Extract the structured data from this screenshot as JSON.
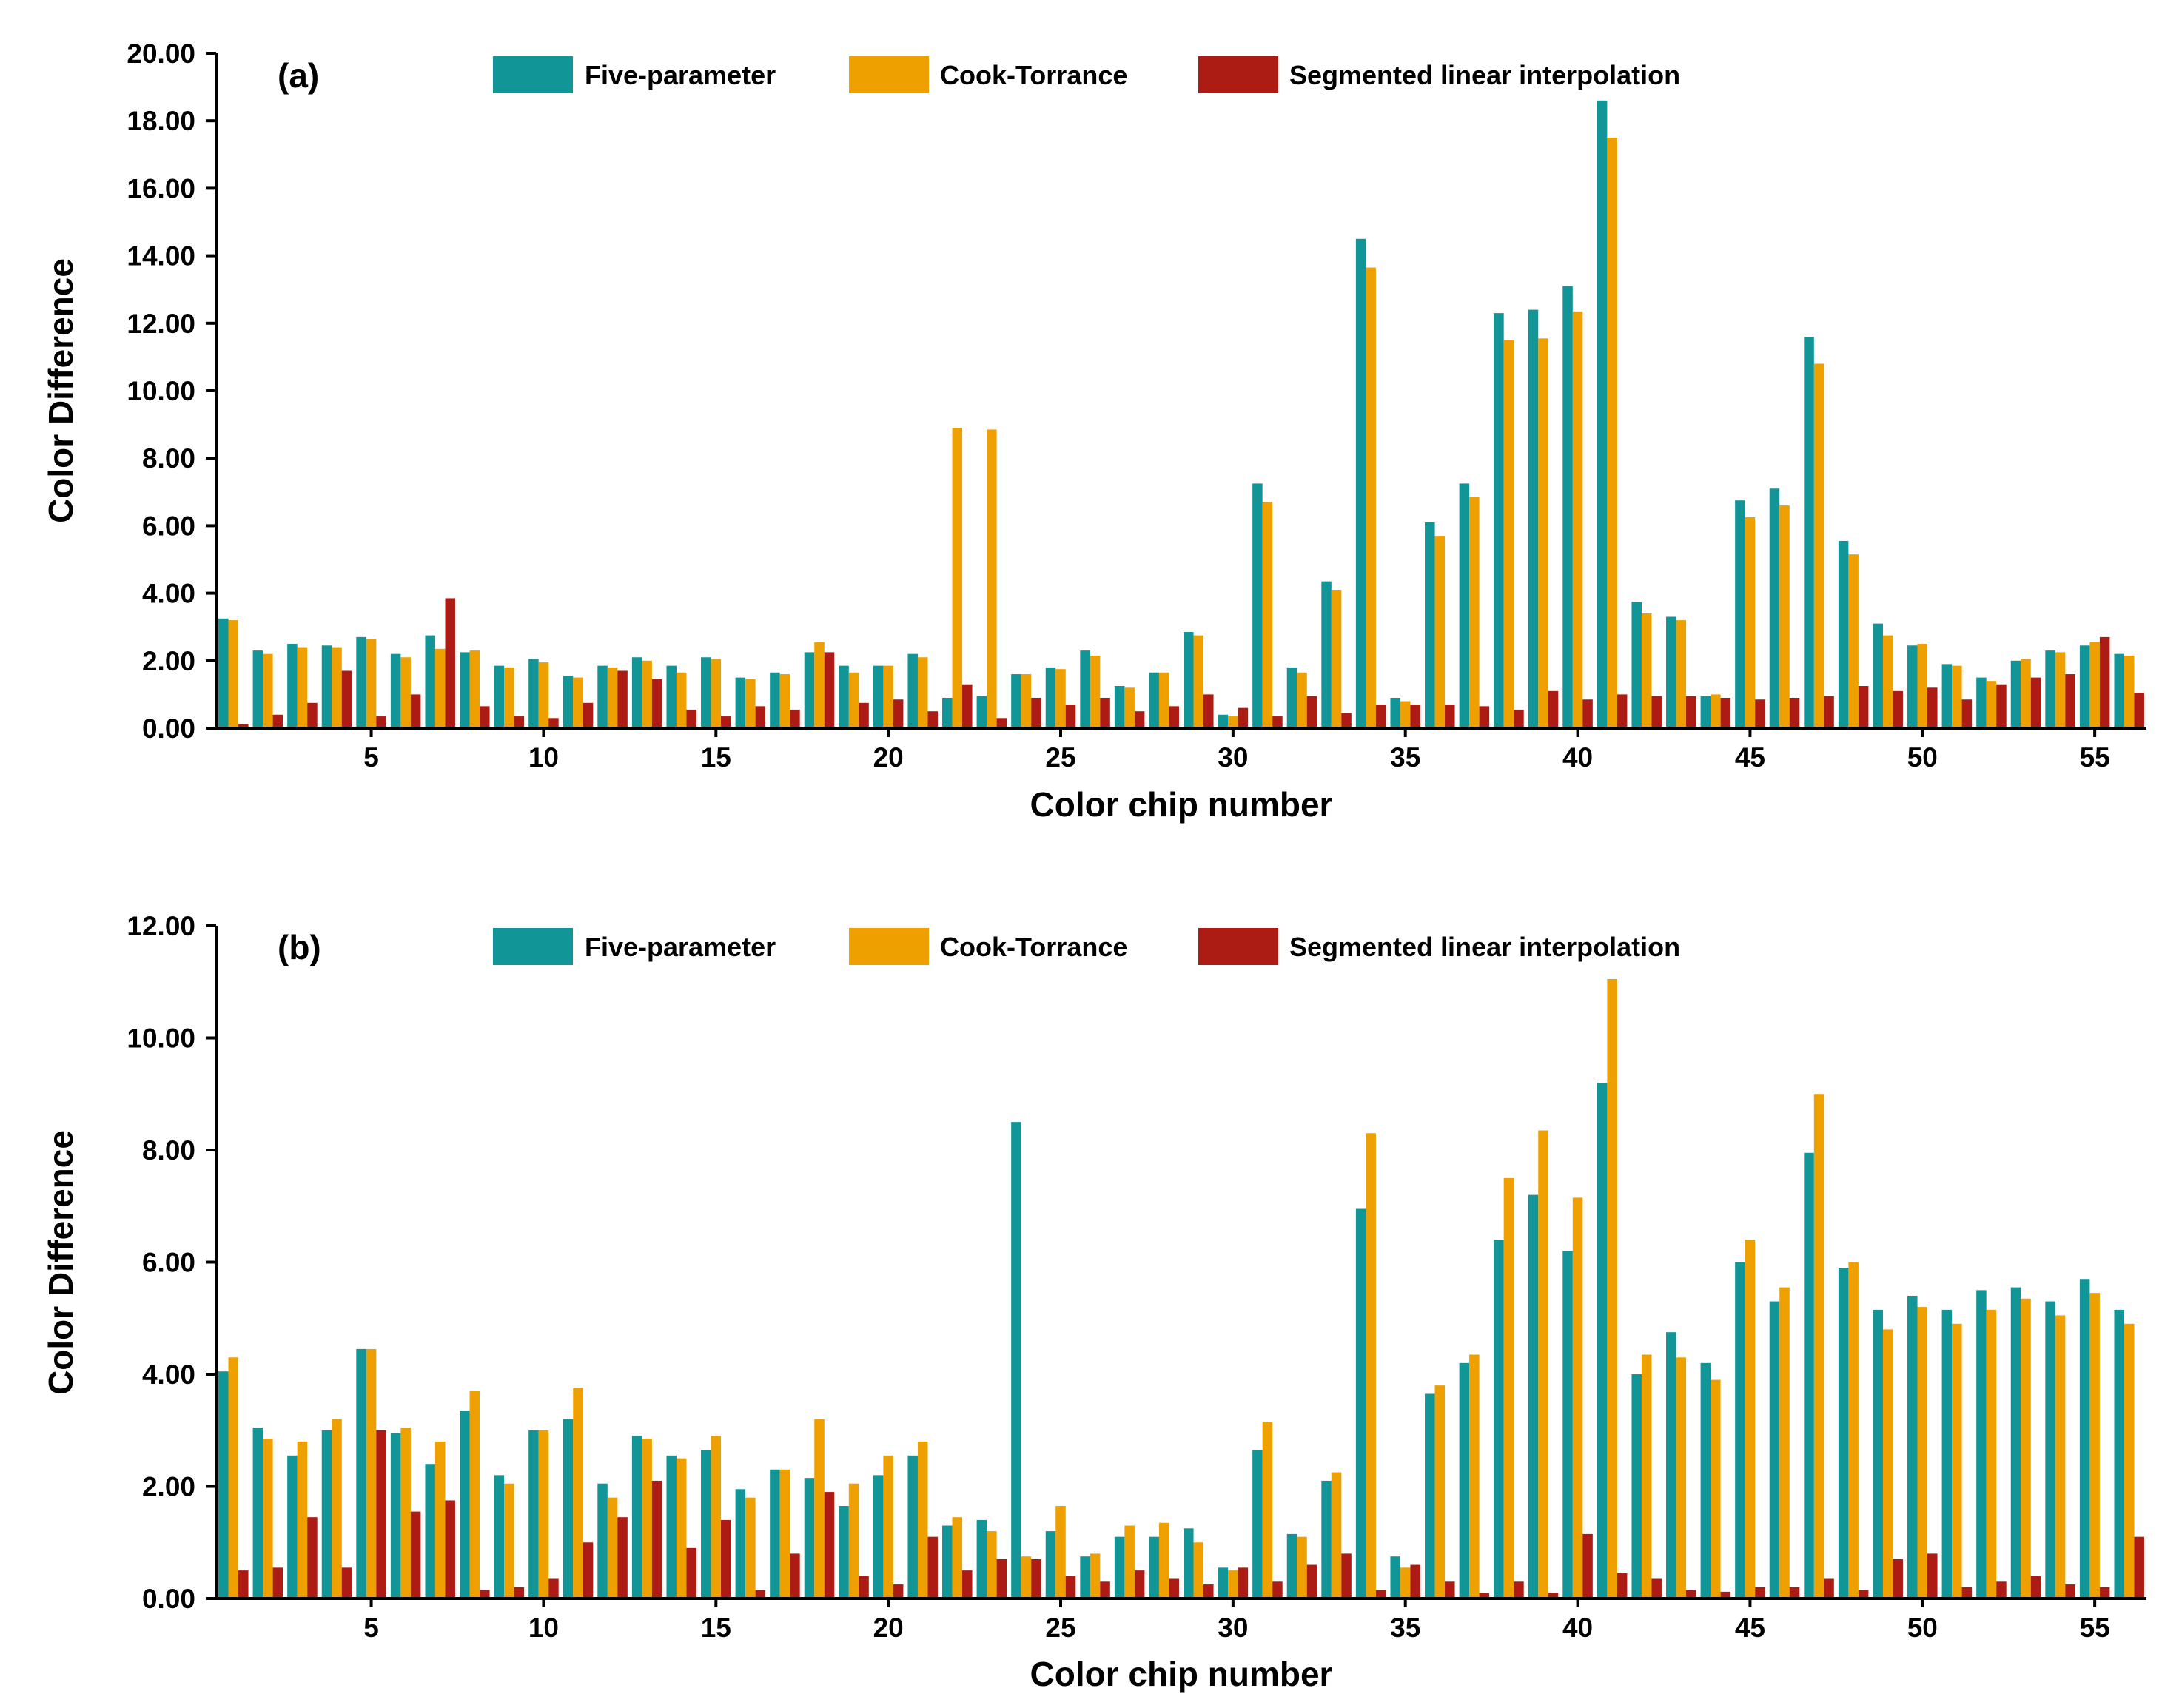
{
  "colors": {
    "five_parameter": "#129597",
    "cook_torrance": "#eda000",
    "segmented": "#ad1c14",
    "axis": "#000000",
    "background": "#ffffff"
  },
  "chart_data": [
    {
      "type": "bar",
      "panel_label": "(a)",
      "xlabel": "Color chip number",
      "ylabel": "Color Difference",
      "ylim": [
        0,
        20
      ],
      "y_ticks": [
        "0.00",
        "2.00",
        "4.00",
        "6.00",
        "8.00",
        "10.00",
        "12.00",
        "14.00",
        "16.00",
        "18.00",
        "20.00"
      ],
      "x_tick_labels": [
        "5",
        "10",
        "15",
        "20",
        "25",
        "30",
        "35",
        "40",
        "45",
        "50",
        "55"
      ],
      "legend_position": "top-center",
      "categories": [
        1,
        2,
        3,
        4,
        5,
        6,
        7,
        8,
        9,
        10,
        11,
        12,
        13,
        14,
        15,
        16,
        17,
        18,
        19,
        20,
        21,
        22,
        23,
        24,
        25,
        26,
        27,
        28,
        29,
        30,
        31,
        32,
        33,
        34,
        35,
        36,
        37,
        38,
        39,
        40,
        41,
        42,
        43,
        44,
        45,
        46,
        47,
        48,
        49,
        50,
        51,
        52,
        53,
        54,
        55,
        56
      ],
      "series": [
        {
          "name": "Five-parameter",
          "values": [
            3.25,
            2.3,
            2.5,
            2.45,
            2.7,
            2.2,
            2.75,
            2.25,
            1.85,
            2.05,
            1.55,
            1.85,
            2.1,
            1.85,
            2.1,
            1.5,
            1.65,
            2.25,
            1.85,
            1.85,
            2.2,
            0.9,
            0.95,
            1.6,
            1.8,
            2.3,
            1.25,
            1.65,
            2.85,
            0.4,
            7.25,
            1.8,
            4.35,
            14.5,
            0.9,
            6.1,
            7.25,
            12.3,
            12.4,
            13.1,
            18.6,
            3.75,
            3.3,
            0.95,
            6.75,
            7.1,
            11.6,
            5.55,
            3.1,
            2.45,
            1.9,
            1.5,
            2.0,
            2.3,
            2.45,
            2.2
          ]
        },
        {
          "name": "Cook-Torrance",
          "values": [
            3.2,
            2.2,
            2.4,
            2.4,
            2.65,
            2.1,
            2.35,
            2.3,
            1.8,
            1.95,
            1.5,
            1.8,
            2.0,
            1.65,
            2.05,
            1.45,
            1.6,
            2.55,
            1.65,
            1.85,
            2.1,
            8.9,
            8.85,
            1.6,
            1.75,
            2.15,
            1.2,
            1.65,
            2.75,
            0.35,
            6.7,
            1.65,
            4.1,
            13.65,
            0.8,
            5.7,
            6.85,
            11.5,
            11.55,
            12.35,
            17.5,
            3.4,
            3.2,
            1.0,
            6.25,
            6.6,
            10.8,
            5.15,
            2.75,
            2.5,
            1.85,
            1.4,
            2.05,
            2.25,
            2.55,
            2.15
          ]
        },
        {
          "name": "Segmented linear interpolation",
          "values": [
            0.12,
            0.4,
            0.75,
            1.7,
            0.35,
            1.0,
            3.85,
            0.65,
            0.35,
            0.3,
            0.75,
            1.7,
            1.45,
            0.55,
            0.35,
            0.65,
            0.55,
            2.25,
            0.75,
            0.85,
            0.5,
            1.3,
            0.3,
            0.9,
            0.7,
            0.9,
            0.5,
            0.65,
            1.0,
            0.6,
            0.35,
            0.95,
            0.45,
            0.7,
            0.7,
            0.7,
            0.65,
            0.55,
            1.1,
            0.85,
            1.0,
            0.95,
            0.95,
            0.9,
            0.85,
            0.9,
            0.95,
            1.25,
            1.1,
            1.2,
            0.85,
            1.3,
            1.5,
            1.6,
            2.7,
            1.05
          ]
        }
      ]
    },
    {
      "type": "bar",
      "panel_label": "(b)",
      "xlabel": "Color chip number",
      "ylabel": "Color Difference",
      "ylim": [
        0,
        12
      ],
      "y_ticks": [
        "0.00",
        "2.00",
        "4.00",
        "6.00",
        "8.00",
        "10.00",
        "12.00"
      ],
      "x_tick_labels": [
        "5",
        "10",
        "15",
        "20",
        "25",
        "30",
        "35",
        "40",
        "45",
        "50",
        "55"
      ],
      "legend_position": "top-center",
      "categories": [
        1,
        2,
        3,
        4,
        5,
        6,
        7,
        8,
        9,
        10,
        11,
        12,
        13,
        14,
        15,
        16,
        17,
        18,
        19,
        20,
        21,
        22,
        23,
        24,
        25,
        26,
        27,
        28,
        29,
        30,
        31,
        32,
        33,
        34,
        35,
        36,
        37,
        38,
        39,
        40,
        41,
        42,
        43,
        44,
        45,
        46,
        47,
        48,
        49,
        50,
        51,
        52,
        53,
        54,
        55,
        56
      ],
      "series": [
        {
          "name": "Five-parameter",
          "values": [
            4.05,
            3.05,
            2.55,
            3.0,
            4.45,
            2.95,
            2.4,
            3.35,
            2.2,
            3.0,
            3.2,
            2.05,
            2.9,
            2.55,
            2.65,
            1.95,
            2.3,
            2.15,
            1.65,
            2.2,
            2.55,
            1.3,
            1.4,
            8.5,
            1.2,
            0.75,
            1.1,
            1.1,
            1.25,
            0.55,
            2.65,
            1.15,
            2.1,
            6.95,
            0.75,
            3.65,
            4.2,
            6.4,
            7.2,
            6.2,
            9.2,
            4.0,
            4.75,
            4.2,
            6.0,
            5.3,
            7.95,
            5.9,
            5.15,
            5.4,
            5.15,
            5.5,
            5.55,
            5.3,
            5.7,
            5.15
          ]
        },
        {
          "name": "Cook-Torrance",
          "values": [
            4.3,
            2.85,
            2.8,
            3.2,
            4.45,
            3.05,
            2.8,
            3.7,
            2.05,
            3.0,
            3.75,
            1.8,
            2.85,
            2.5,
            2.9,
            1.8,
            2.3,
            3.2,
            2.05,
            2.55,
            2.8,
            1.45,
            1.2,
            0.75,
            1.65,
            0.8,
            1.3,
            1.35,
            1.0,
            0.5,
            3.15,
            1.1,
            2.25,
            8.3,
            0.55,
            3.8,
            4.35,
            7.5,
            8.35,
            7.15,
            11.05,
            4.35,
            4.3,
            3.9,
            6.4,
            5.55,
            9.0,
            6.0,
            4.8,
            5.2,
            4.9,
            5.15,
            5.35,
            5.05,
            5.45,
            4.9
          ]
        },
        {
          "name": "Segmented linear interpolation",
          "values": [
            0.5,
            0.55,
            1.45,
            0.55,
            3.0,
            1.55,
            1.75,
            0.15,
            0.2,
            0.35,
            1.0,
            1.45,
            2.1,
            0.9,
            1.4,
            0.15,
            0.8,
            1.9,
            0.4,
            0.25,
            1.1,
            0.5,
            0.7,
            0.7,
            0.4,
            0.3,
            0.5,
            0.35,
            0.25,
            0.55,
            0.3,
            0.6,
            0.8,
            0.15,
            0.6,
            0.3,
            0.1,
            0.3,
            0.1,
            1.15,
            0.45,
            0.35,
            0.15,
            0.12,
            0.2,
            0.2,
            0.35,
            0.15,
            0.7,
            0.8,
            0.2,
            0.3,
            0.4,
            0.25,
            0.2,
            1.1
          ]
        }
      ]
    }
  ]
}
